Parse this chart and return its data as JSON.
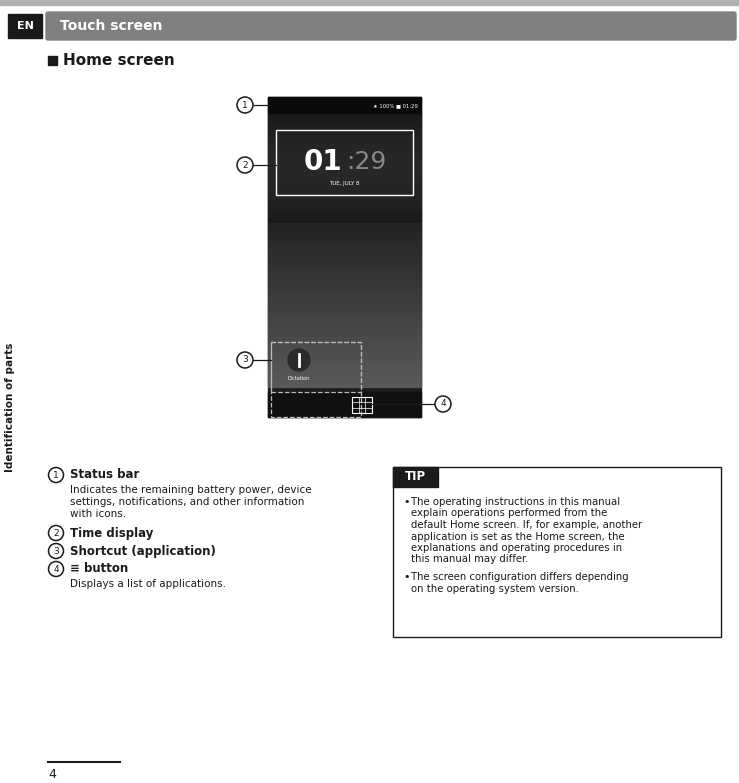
{
  "bg_color": "#ffffff",
  "top_stripe_color": "#b0b0b0",
  "header_bg_color": "#808080",
  "header_text": "Touch screen",
  "header_text_color": "#ffffff",
  "en_box_color": "#1a1a1a",
  "en_text": "EN",
  "en_text_color": "#ffffff",
  "side_text": "Identification of parts",
  "side_text_color": "#1a1a1a",
  "home_screen_square_color": "#1a1a1a",
  "home_screen_title": "Home screen",
  "items": [
    {
      "num": "1",
      "bold": "Status bar",
      "normal": "Indicates the remaining battery power, device\nsettings, notifications, and other information\nwith icons."
    },
    {
      "num": "2",
      "bold": "Time display",
      "normal": ""
    },
    {
      "num": "3",
      "bold": "Shortcut (application)",
      "normal": ""
    },
    {
      "num": "4",
      "bold": "≡ button",
      "normal": "Displays a list of applications."
    }
  ],
  "tip_header": "TIP",
  "tip_header_bg": "#1a1a1a",
  "tip_header_text_color": "#ffffff",
  "tip_border_color": "#1a1a1a",
  "tip_bullets": [
    "The operating instructions in this manual\nexplain operations performed from the\ndefault Home screen. If, for example, another\napplication is set as the Home screen, the\nexplanations and operating procedures in\nthis manual may differ.",
    "The screen configuration differs depending\non the operating system version."
  ],
  "page_number": "4",
  "footer_line_color": "#1a1a1a"
}
